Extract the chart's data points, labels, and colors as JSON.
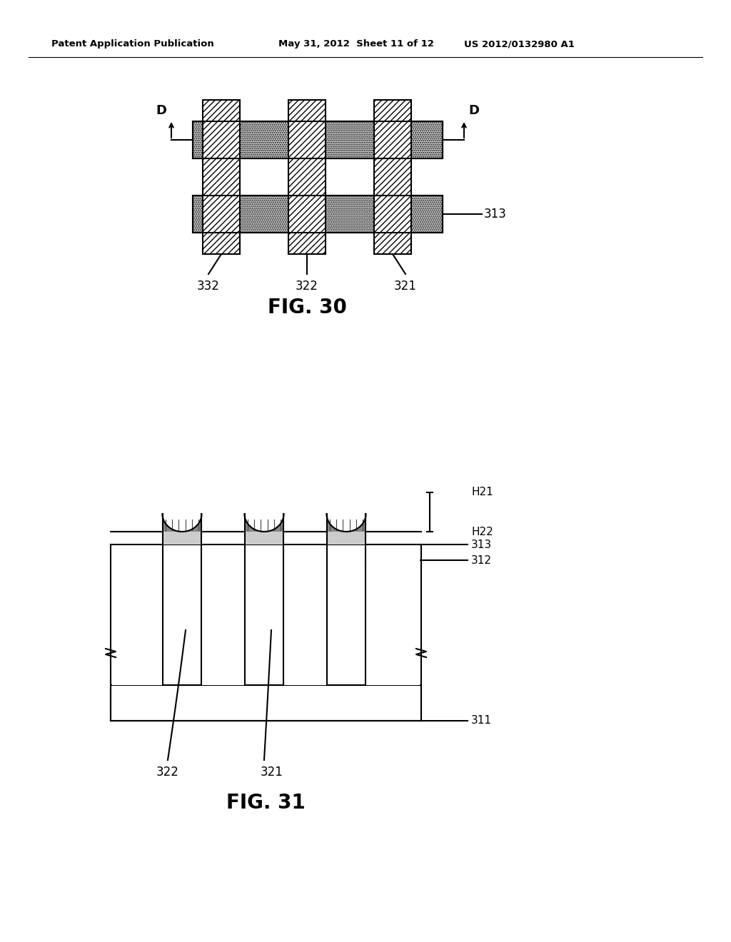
{
  "header_left": "Patent Application Publication",
  "header_mid": "May 31, 2012  Sheet 11 of 12",
  "header_right": "US 2012/0132980 A1",
  "fig30_title": "FIG. 30",
  "fig31_title": "FIG. 31",
  "bg_color": "#ffffff",
  "line_color": "#000000"
}
